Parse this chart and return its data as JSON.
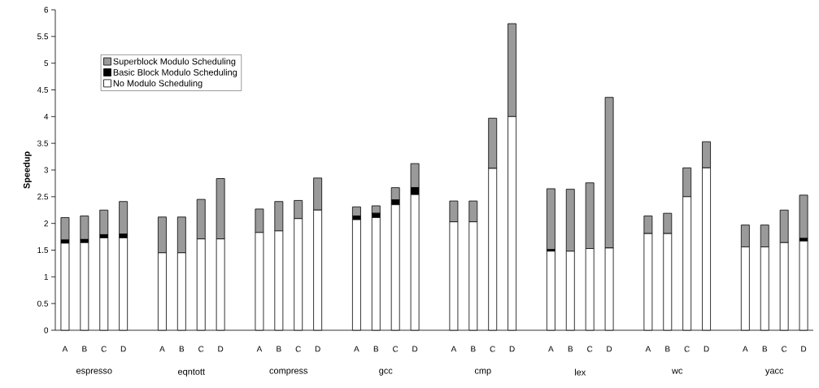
{
  "chart_data": {
    "type": "bar",
    "stacked": true,
    "ylabel": "Speedup",
    "categories": [
      "A",
      "B",
      "C",
      "D",
      null,
      "A",
      "B",
      "C",
      "D",
      null,
      "A",
      "B",
      "C",
      "D",
      null,
      "A",
      "B",
      "C",
      "D",
      null,
      "A",
      "B",
      "C",
      "D",
      null,
      "A",
      "B",
      "C",
      "D",
      null,
      "A",
      "B",
      "C",
      "D",
      null,
      "A",
      "B",
      "C",
      "D"
    ],
    "series": [
      {
        "name": "No Modulo Scheduling",
        "color": "#ffffff",
        "values": [
          1.63,
          1.64,
          1.73,
          1.73,
          null,
          1.45,
          1.45,
          1.71,
          1.71,
          null,
          1.83,
          1.86,
          2.09,
          2.25,
          null,
          2.07,
          2.11,
          2.35,
          2.54,
          null,
          2.03,
          2.03,
          3.03,
          4.0,
          null,
          1.48,
          1.48,
          1.53,
          1.54,
          null,
          1.81,
          1.81,
          2.5,
          3.04,
          null,
          1.56,
          1.56,
          1.64,
          1.67
        ]
      },
      {
        "name": "Basic Block Modulo Scheduling",
        "color": "#000000",
        "values": [
          0.06,
          0.06,
          0.06,
          0.07,
          null,
          0,
          0,
          0,
          0,
          null,
          0,
          0,
          0,
          0,
          null,
          0.07,
          0.08,
          0.09,
          0.13,
          null,
          0,
          0,
          0,
          0,
          null,
          0.03,
          null,
          null,
          0,
          null,
          0,
          0,
          0,
          0,
          null,
          0,
          0,
          0,
          0.05
        ]
      },
      {
        "name": "Superblock Modulo Scheduling",
        "color": "#9a9a9a",
        "values": [
          0.42,
          0.44,
          0.46,
          0.61,
          null,
          0.67,
          0.67,
          0.74,
          1.13,
          null,
          0.44,
          0.55,
          0.34,
          0.6,
          null,
          0.17,
          0.14,
          0.23,
          0.45,
          null,
          0.39,
          0.39,
          0.94,
          1.74,
          null,
          1.14,
          1.16,
          1.23,
          2.82,
          null,
          0.33,
          0.38,
          0.54,
          0.49,
          null,
          0.41,
          0.41,
          0.61,
          0.81
        ]
      }
    ],
    "ylim": [
      0,
      6
    ],
    "yticks": [
      0,
      0.5,
      1,
      1.5,
      2,
      2.5,
      3,
      3.5,
      4,
      4.5,
      5,
      5.5,
      6
    ],
    "legend": "top left",
    "annotations": [
      "espresso",
      "eqntott",
      "compress",
      "gcc",
      "cmp",
      "lex",
      "wc",
      "yacc"
    ]
  }
}
